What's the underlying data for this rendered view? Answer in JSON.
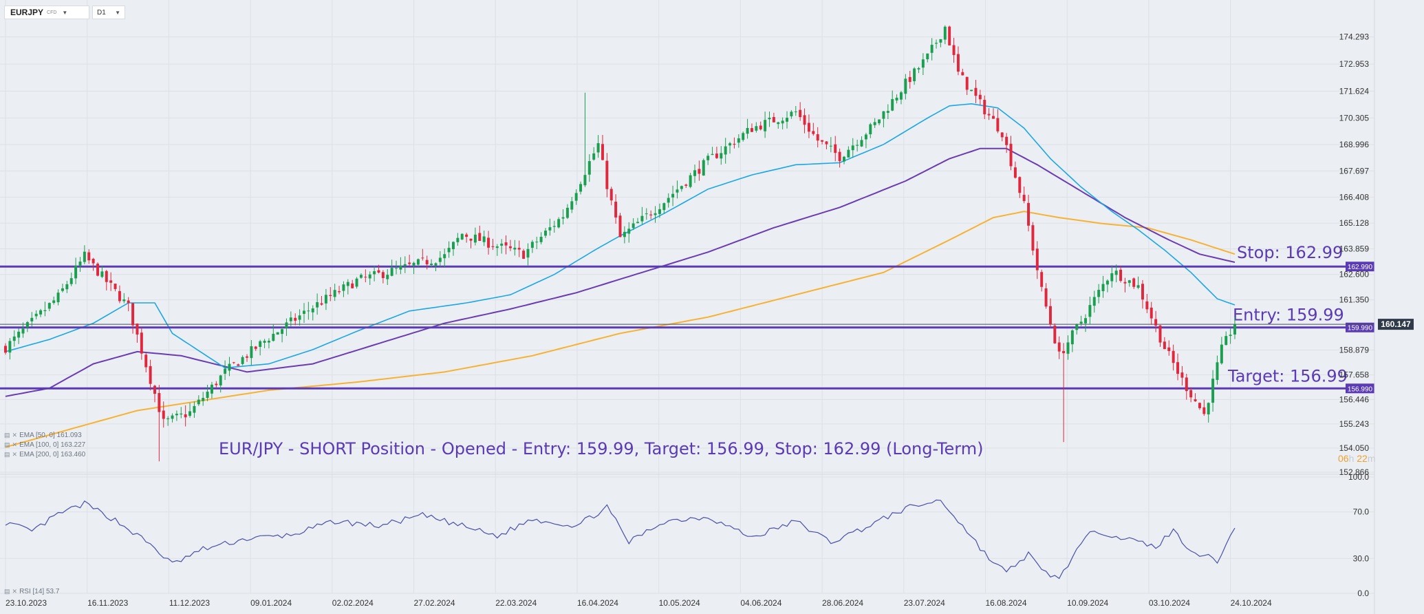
{
  "toolbar": {
    "symbol": "EURJPY",
    "symbol_type": "CFD",
    "timeframe": "D1"
  },
  "indicators": [
    {
      "label": "EMA [50, 0] 161.093"
    },
    {
      "label": "EMA [100, 0] 163.227"
    },
    {
      "label": "EMA [200, 0] 163.460"
    }
  ],
  "rsi_label": "RSI [14] 53.7",
  "annotation": "EUR/JPY - SHORT Position - Opened - Entry: 159.99, Target: 156.99, Stop: 162.99 (Long-Term)",
  "countdown": {
    "hours": "06",
    "h": "h",
    "minutes": "22",
    "m": "m"
  },
  "chart_data": {
    "type": "candlestick",
    "symbol": "EURJPY",
    "timeframe": "D1",
    "colors": {
      "up": "#1a9e4f",
      "down": "#e0273d",
      "ema50": "#1aa7e6",
      "ema100": "#6a3bb2",
      "ema200": "#f7b232",
      "level": "#5a3ab5",
      "rsi": "#4a4fa8"
    },
    "x_ticks": [
      "23.10.2023",
      "16.11.2023",
      "11.12.2023",
      "09.01.2024",
      "02.02.2024",
      "27.02.2024",
      "22.03.2024",
      "16.04.2024",
      "10.05.2024",
      "04.06.2024",
      "28.06.2024",
      "23.07.2024",
      "16.08.2024",
      "10.09.2024",
      "03.10.2024",
      "24.10.2024"
    ],
    "price_ticks": [
      "174.293",
      "172.953",
      "171.624",
      "170.305",
      "168.996",
      "167.697",
      "166.408",
      "165.128",
      "163.859",
      "162.600",
      "161.350",
      "160.147",
      "158.879",
      "157.658",
      "156.446",
      "155.243",
      "154.050",
      "152.866"
    ],
    "price_range": [
      152.866,
      175.5
    ],
    "current_price": "160.147",
    "rsi_ticks": [
      "100.0",
      "70.0",
      "30.0",
      "0.0"
    ],
    "rsi_range": [
      0,
      100
    ],
    "levels": [
      {
        "name": "Stop",
        "price": 162.99,
        "tag": "162.990",
        "label": "Stop: 162.99"
      },
      {
        "name": "Entry",
        "price": 159.99,
        "tag": "159.990",
        "label": "Entry: 159.99"
      },
      {
        "name": "Target",
        "price": 156.99,
        "tag": "156.990",
        "label": "Target: 156.99"
      }
    ],
    "price_anchors": [
      [
        0,
        159.0
      ],
      [
        12,
        161.5
      ],
      [
        18,
        163.5
      ],
      [
        28,
        161.0
      ],
      [
        36,
        155.3
      ],
      [
        42,
        155.8
      ],
      [
        50,
        157.8
      ],
      [
        60,
        159.5
      ],
      [
        70,
        161.0
      ],
      [
        80,
        162.3
      ],
      [
        92,
        163.0
      ],
      [
        100,
        163.5
      ],
      [
        104,
        164.6
      ],
      [
        112,
        164.0
      ],
      [
        118,
        163.6
      ],
      [
        127,
        165.5
      ],
      [
        135,
        169.0
      ],
      [
        137,
        167.0
      ],
      [
        140,
        164.4
      ],
      [
        150,
        166.2
      ],
      [
        160,
        168.2
      ],
      [
        170,
        169.8
      ],
      [
        180,
        170.6
      ],
      [
        185,
        169.2
      ],
      [
        190,
        168.4
      ],
      [
        198,
        170.0
      ],
      [
        205,
        172.0
      ],
      [
        210,
        173.3
      ],
      [
        214,
        174.8
      ],
      [
        217,
        172.5
      ],
      [
        223,
        170.7
      ],
      [
        227,
        169.6
      ],
      [
        232,
        166.0
      ],
      [
        236,
        161.8
      ],
      [
        240,
        158.6
      ],
      [
        245,
        160.3
      ],
      [
        252,
        162.8
      ],
      [
        258,
        162.0
      ],
      [
        264,
        159.0
      ],
      [
        268,
        157.4
      ],
      [
        273,
        155.7
      ],
      [
        277,
        158.9
      ],
      [
        280,
        160.2
      ]
    ],
    "rsi_anchors": [
      [
        0,
        61
      ],
      [
        6,
        53
      ],
      [
        12,
        68
      ],
      [
        18,
        77
      ],
      [
        25,
        63
      ],
      [
        33,
        42
      ],
      [
        38,
        25
      ],
      [
        45,
        38
      ],
      [
        55,
        47
      ],
      [
        65,
        50
      ],
      [
        75,
        62
      ],
      [
        85,
        58
      ],
      [
        95,
        67
      ],
      [
        105,
        57
      ],
      [
        112,
        49
      ],
      [
        120,
        64
      ],
      [
        130,
        58
      ],
      [
        137,
        74
      ],
      [
        142,
        44
      ],
      [
        150,
        62
      ],
      [
        160,
        66
      ],
      [
        170,
        48
      ],
      [
        180,
        62
      ],
      [
        188,
        44
      ],
      [
        196,
        57
      ],
      [
        205,
        73
      ],
      [
        213,
        80
      ],
      [
        218,
        58
      ],
      [
        224,
        30
      ],
      [
        228,
        18
      ],
      [
        233,
        34
      ],
      [
        236,
        19
      ],
      [
        240,
        13
      ],
      [
        244,
        37
      ],
      [
        248,
        55
      ],
      [
        254,
        48
      ],
      [
        262,
        40
      ],
      [
        266,
        54
      ],
      [
        270,
        37
      ],
      [
        276,
        28
      ],
      [
        280,
        56
      ]
    ],
    "ema50_anchors": [
      [
        0,
        158.8
      ],
      [
        10,
        159.4
      ],
      [
        20,
        160.2
      ],
      [
        28,
        161.2
      ],
      [
        34,
        161.2
      ],
      [
        38,
        159.7
      ],
      [
        50,
        158.0
      ],
      [
        60,
        158.2
      ],
      [
        70,
        158.9
      ],
      [
        80,
        159.8
      ],
      [
        92,
        160.8
      ],
      [
        105,
        161.2
      ],
      [
        115,
        161.6
      ],
      [
        125,
        162.6
      ],
      [
        135,
        163.9
      ],
      [
        140,
        164.5
      ],
      [
        150,
        165.6
      ],
      [
        160,
        166.8
      ],
      [
        170,
        167.5
      ],
      [
        180,
        168.0
      ],
      [
        190,
        168.1
      ],
      [
        200,
        169.0
      ],
      [
        210,
        170.3
      ],
      [
        215,
        170.9
      ],
      [
        220,
        171.0
      ],
      [
        226,
        170.8
      ],
      [
        232,
        169.8
      ],
      [
        238,
        168.3
      ],
      [
        245,
        166.9
      ],
      [
        252,
        165.7
      ],
      [
        258,
        164.8
      ],
      [
        264,
        163.8
      ],
      [
        270,
        162.7
      ],
      [
        276,
        161.4
      ],
      [
        280,
        161.1
      ]
    ],
    "ema100_anchors": [
      [
        0,
        156.6
      ],
      [
        10,
        157.0
      ],
      [
        20,
        158.2
      ],
      [
        30,
        158.8
      ],
      [
        40,
        158.6
      ],
      [
        55,
        157.8
      ],
      [
        70,
        158.2
      ],
      [
        85,
        159.2
      ],
      [
        100,
        160.2
      ],
      [
        115,
        160.9
      ],
      [
        130,
        161.7
      ],
      [
        145,
        162.7
      ],
      [
        160,
        163.7
      ],
      [
        175,
        164.9
      ],
      [
        190,
        165.9
      ],
      [
        205,
        167.2
      ],
      [
        215,
        168.3
      ],
      [
        222,
        168.8
      ],
      [
        228,
        168.8
      ],
      [
        235,
        168.0
      ],
      [
        245,
        166.7
      ],
      [
        255,
        165.4
      ],
      [
        265,
        164.3
      ],
      [
        272,
        163.6
      ],
      [
        280,
        163.2
      ]
    ],
    "ema200_anchors": [
      [
        0,
        154.1
      ],
      [
        15,
        155.0
      ],
      [
        30,
        155.9
      ],
      [
        45,
        156.4
      ],
      [
        60,
        156.9
      ],
      [
        80,
        157.3
      ],
      [
        100,
        157.8
      ],
      [
        120,
        158.6
      ],
      [
        140,
        159.7
      ],
      [
        160,
        160.5
      ],
      [
        180,
        161.6
      ],
      [
        200,
        162.7
      ],
      [
        215,
        164.3
      ],
      [
        225,
        165.4
      ],
      [
        232,
        165.7
      ],
      [
        240,
        165.4
      ],
      [
        250,
        165.1
      ],
      [
        260,
        164.9
      ],
      [
        270,
        164.3
      ],
      [
        280,
        163.6
      ]
    ]
  }
}
